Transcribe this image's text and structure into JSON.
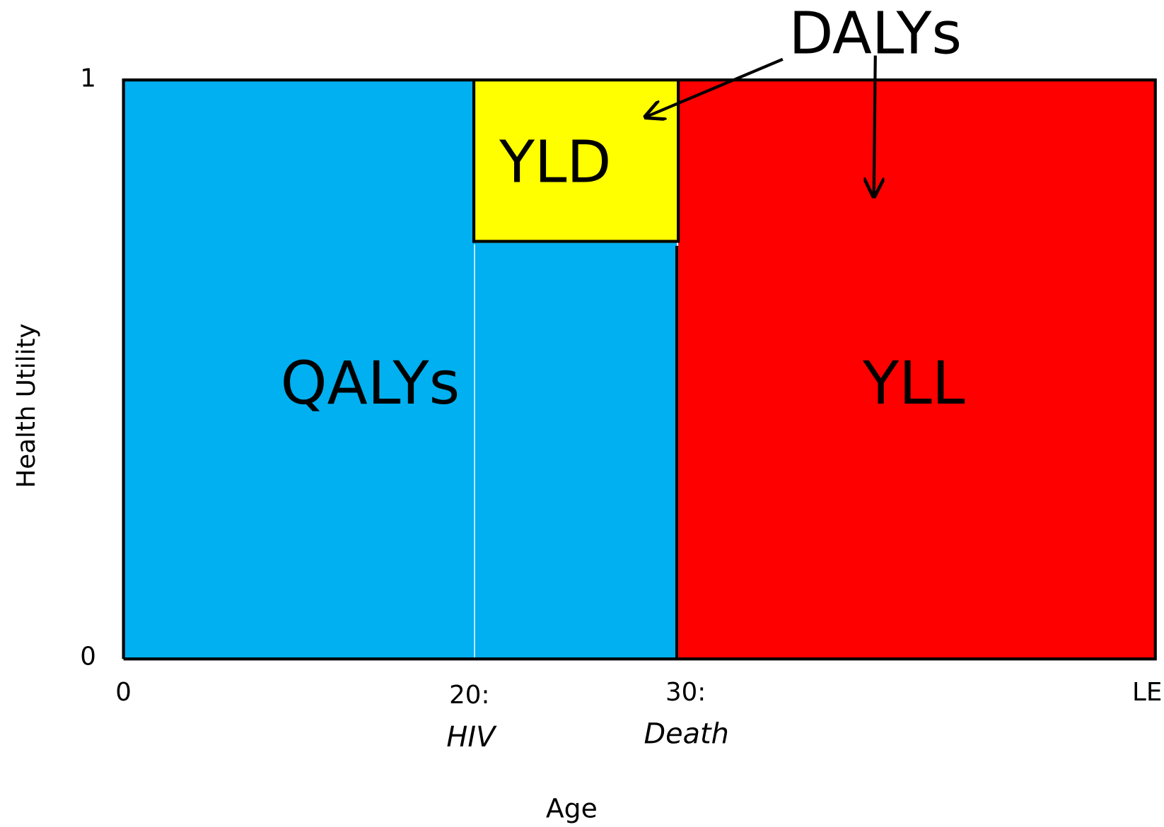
{
  "y_axis": {
    "label": "Health Utility",
    "top": "1",
    "bottom": "0"
  },
  "x_axis": {
    "label": "Age",
    "ticks": [
      {
        "number": "0"
      },
      {
        "number": "20:",
        "event": "HIV"
      },
      {
        "number": "30:",
        "event": "Death"
      },
      {
        "number": "LE"
      }
    ]
  },
  "regions": {
    "qalys": "QALYs",
    "yld": "YLD",
    "yll": "YLL"
  },
  "callout": "DALYs"
}
